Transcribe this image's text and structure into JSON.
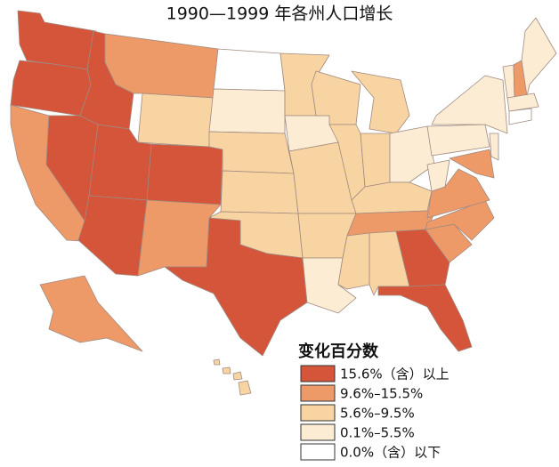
{
  "title": "1990—1999 年各州人口增长",
  "legend": {
    "title": "变化百分数",
    "items": [
      {
        "label": "15.6%（含）以上",
        "color": "#d4553a"
      },
      {
        "label": "9.6%–15.5%",
        "color": "#ee9a68"
      },
      {
        "label": "5.6%–9.5%",
        "color": "#f8d4a2"
      },
      {
        "label": "0.1%–5.5%",
        "color": "#fcecd4"
      },
      {
        "label": "0.0%（含）以下",
        "color": "#ffffff"
      }
    ]
  },
  "regions": [
    0,
    0,
    1,
    0,
    0,
    1,
    2,
    0,
    0,
    0,
    1,
    4,
    3,
    2,
    2,
    2,
    0,
    2,
    3,
    2,
    2,
    3,
    2,
    2,
    2,
    2,
    3,
    2,
    1,
    2,
    2,
    0,
    0,
    1,
    1,
    1,
    3,
    3,
    3,
    1,
    3,
    3,
    1,
    3,
    3,
    4,
    1,
    2,
    2,
    2,
    2
  ]
}
